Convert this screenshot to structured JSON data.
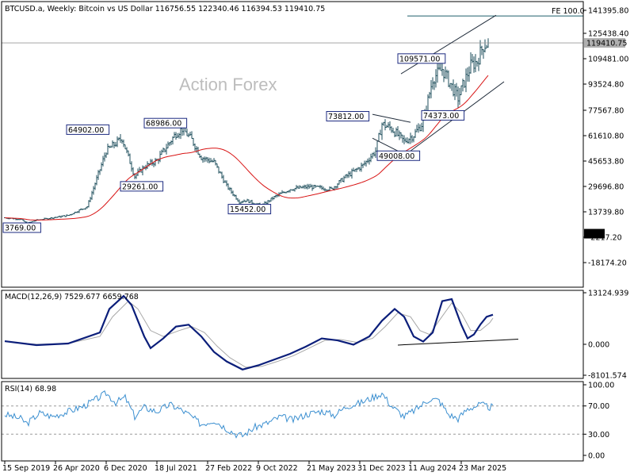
{
  "chart_data": [
    {
      "type": "candlestick",
      "title": "BTCUSD.a, Weekly:  Bitcoin vs US Dollar  116756.55 122340.46 116394.53 119410.75",
      "watermark": "Action Forex",
      "y_scale": "custom",
      "y_ticks": [
        "141395.80",
        "125438.40",
        "109481.00",
        "93524.80",
        "77567.80",
        "61610.80",
        "45653.80",
        "29696.80",
        "13739.80",
        "-2217.20",
        "-18174.20"
      ],
      "y_tick_values": [
        141395.8,
        125438.4,
        109481.0,
        93524.8,
        77567.8,
        61610.8,
        45653.8,
        29696.8,
        13739.8,
        -2217.2,
        -18174.2
      ],
      "current_price_label": "119410.75",
      "zero_label": "0.00",
      "fe_label": "FE 100.0",
      "fe_value": 137500,
      "anchor_points": [
        {
          "week": 0,
          "price": 10000
        },
        {
          "week": 10,
          "price": 9000
        },
        {
          "week": 14,
          "price": 6500
        },
        {
          "week": 20,
          "price": 8500
        },
        {
          "week": 40,
          "price": 11500
        },
        {
          "week": 52,
          "price": 17000
        },
        {
          "week": 64,
          "price": 52000
        },
        {
          "week": 74,
          "price": 60000
        },
        {
          "week": 82,
          "price": 36000
        },
        {
          "week": 88,
          "price": 42000
        },
        {
          "week": 96,
          "price": 46000
        },
        {
          "week": 108,
          "price": 63000
        },
        {
          "week": 112,
          "price": 66000
        },
        {
          "week": 118,
          "price": 59000
        },
        {
          "week": 124,
          "price": 48000
        },
        {
          "week": 132,
          "price": 45000
        },
        {
          "week": 140,
          "price": 30000
        },
        {
          "week": 148,
          "price": 20000
        },
        {
          "week": 152,
          "price": 21000
        },
        {
          "week": 162,
          "price": 17500
        },
        {
          "week": 170,
          "price": 23000
        },
        {
          "week": 180,
          "price": 28000
        },
        {
          "week": 192,
          "price": 29500
        },
        {
          "week": 206,
          "price": 28000
        },
        {
          "week": 214,
          "price": 35000
        },
        {
          "week": 226,
          "price": 43000
        },
        {
          "week": 234,
          "price": 52000
        },
        {
          "week": 238,
          "price": 69000
        },
        {
          "week": 244,
          "price": 66000
        },
        {
          "week": 252,
          "price": 58000
        },
        {
          "week": 258,
          "price": 62000
        },
        {
          "week": 264,
          "price": 70000
        },
        {
          "week": 270,
          "price": 97000
        },
        {
          "week": 276,
          "price": 103000
        },
        {
          "week": 282,
          "price": 92000
        },
        {
          "week": 286,
          "price": 85000
        },
        {
          "week": 290,
          "price": 95000
        },
        {
          "week": 294,
          "price": 105000
        },
        {
          "week": 298,
          "price": 108000
        },
        {
          "week": 302,
          "price": 118000
        },
        {
          "week": 305,
          "price": 119400
        }
      ],
      "annotations": [
        {
          "label": "3769.00",
          "week": 10,
          "price": 3769.0
        },
        {
          "label": "64902.00",
          "week": 64,
          "price": 64902.0
        },
        {
          "label": "68986.00",
          "week": 112,
          "price": 68986.0
        },
        {
          "label": "29261.00",
          "week": 82,
          "price": 29261.0
        },
        {
          "label": "15452.00",
          "week": 155,
          "price": 15452.0
        },
        {
          "label": "73812.00",
          "week": 238,
          "price": 73812.0
        },
        {
          "label": "49008.00",
          "week": 252,
          "price": 49008.0
        },
        {
          "label": "109571.00",
          "week": 276,
          "price": 109571.0
        },
        {
          "label": "74373.00",
          "week": 286,
          "price": 74373.0
        }
      ]
    },
    {
      "type": "line",
      "title": "MACD(12,26,9) 7529.677 6659.768",
      "y_ticks": [
        "13124.939",
        "0.000",
        "-8101.574"
      ],
      "y_tick_values": [
        13124.939,
        0.0,
        -8101.574
      ],
      "series": [
        {
          "name": "MACD",
          "color": "#0b1e7a",
          "points": [
            [
              0,
              800
            ],
            [
              20,
              -200
            ],
            [
              40,
              200
            ],
            [
              60,
              3000
            ],
            [
              66,
              9000
            ],
            [
              75,
              12300
            ],
            [
              80,
              10000
            ],
            [
              88,
              2000
            ],
            [
              92,
              -1000
            ],
            [
              100,
              1500
            ],
            [
              108,
              4500
            ],
            [
              116,
              5000
            ],
            [
              124,
              2000
            ],
            [
              132,
              -2000
            ],
            [
              140,
              -4500
            ],
            [
              150,
              -6600
            ],
            [
              160,
              -5500
            ],
            [
              170,
              -4000
            ],
            [
              180,
              -2500
            ],
            [
              190,
              -600
            ],
            [
              200,
              1500
            ],
            [
              210,
              1000
            ],
            [
              220,
              -100
            ],
            [
              230,
              2000
            ],
            [
              238,
              6000
            ],
            [
              246,
              9000
            ],
            [
              252,
              7000
            ],
            [
              258,
              2000
            ],
            [
              264,
              700
            ],
            [
              270,
              3000
            ],
            [
              276,
              11000
            ],
            [
              282,
              11500
            ],
            [
              288,
              5000
            ],
            [
              292,
              1500
            ],
            [
              296,
              2500
            ],
            [
              300,
              5000
            ],
            [
              304,
              7000
            ],
            [
              308,
              7530
            ]
          ]
        },
        {
          "name": "Signal",
          "color": "#a8a8a8",
          "points": [
            [
              0,
              700
            ],
            [
              20,
              0
            ],
            [
              40,
              200
            ],
            [
              60,
              2000
            ],
            [
              68,
              7000
            ],
            [
              78,
              11000
            ],
            [
              84,
              9000
            ],
            [
              92,
              3500
            ],
            [
              100,
              2000
            ],
            [
              110,
              3500
            ],
            [
              118,
              4500
            ],
            [
              126,
              3000
            ],
            [
              134,
              -500
            ],
            [
              142,
              -3500
            ],
            [
              152,
              -6000
            ],
            [
              162,
              -5800
            ],
            [
              172,
              -4500
            ],
            [
              182,
              -3000
            ],
            [
              192,
              -1000
            ],
            [
              202,
              1000
            ],
            [
              212,
              1200
            ],
            [
              222,
              500
            ],
            [
              232,
              1500
            ],
            [
              240,
              4500
            ],
            [
              248,
              8000
            ],
            [
              256,
              7000
            ],
            [
              262,
              3500
            ],
            [
              268,
              2500
            ],
            [
              274,
              6000
            ],
            [
              282,
              10500
            ],
            [
              288,
              8000
            ],
            [
              294,
              3500
            ],
            [
              300,
              3500
            ],
            [
              306,
              5500
            ],
            [
              308,
              6660
            ]
          ]
        }
      ]
    },
    {
      "type": "line",
      "title": "RSI(14) 68.98",
      "y_ticks": [
        "100.00",
        "70.00",
        "30.00",
        "0.00"
      ],
      "y_tick_values": [
        100,
        70,
        30,
        0
      ],
      "levels": [
        70,
        30
      ],
      "series": [
        {
          "name": "RSI",
          "color": "#3b8fd0",
          "points": [
            [
              0,
              58
            ],
            [
              10,
              52
            ],
            [
              14,
              45
            ],
            [
              22,
              60
            ],
            [
              30,
              55
            ],
            [
              40,
              62
            ],
            [
              50,
              70
            ],
            [
              58,
              80
            ],
            [
              64,
              88
            ],
            [
              70,
              75
            ],
            [
              76,
              82
            ],
            [
              82,
              55
            ],
            [
              88,
              68
            ],
            [
              96,
              62
            ],
            [
              104,
              72
            ],
            [
              110,
              66
            ],
            [
              116,
              58
            ],
            [
              124,
              44
            ],
            [
              132,
              50
            ],
            [
              140,
              38
            ],
            [
              146,
              30
            ],
            [
              150,
              28
            ],
            [
              158,
              40
            ],
            [
              166,
              46
            ],
            [
              174,
              55
            ],
            [
              182,
              50
            ],
            [
              190,
              58
            ],
            [
              200,
              63
            ],
            [
              208,
              57
            ],
            [
              216,
              70
            ],
            [
              224,
              74
            ],
            [
              232,
              82
            ],
            [
              238,
              88
            ],
            [
              244,
              70
            ],
            [
              252,
              55
            ],
            [
              260,
              66
            ],
            [
              268,
              80
            ],
            [
              274,
              78
            ],
            [
              280,
              58
            ],
            [
              286,
              52
            ],
            [
              292,
              66
            ],
            [
              300,
              72
            ],
            [
              306,
              68
            ],
            [
              308,
              69
            ]
          ]
        }
      ]
    }
  ],
  "x_axis": {
    "labels": [
      "15 Sep 2019",
      "26 Apr 2020",
      "6 Dec 2020",
      "18 Jul 2021",
      "27 Feb 2022",
      "9 Oct 2022",
      "21 May 2023",
      "31 Dec 2023",
      "11 Aug 2024",
      "23 Mar 2025"
    ],
    "label_weeks": [
      0,
      32,
      64,
      96,
      128,
      160,
      192,
      224,
      256,
      288
    ]
  },
  "colors": {
    "candles": "#1f4f5c",
    "ma": "#d81414",
    "trendline": "#1f2b3a",
    "box_border": "#1c2a80",
    "grid": "#c8c8c8",
    "axis_border": "#000000",
    "watermark": "#bdbdbd"
  }
}
